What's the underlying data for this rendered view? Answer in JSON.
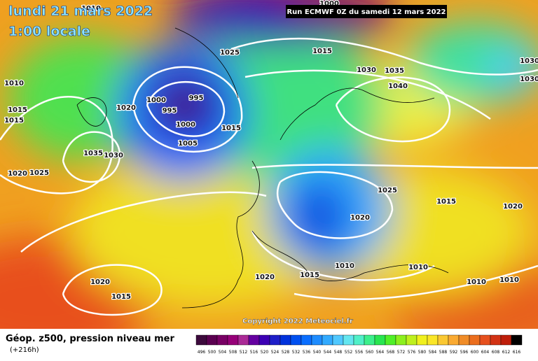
{
  "header": {
    "date": "lundi 21 mars 2022",
    "time": "1:00 locale",
    "run": "Run ECMWF 0Z du samedi 12 mars 2022"
  },
  "map": {
    "copyright": "Copyright 2022 Meteociel.fr",
    "isobar_labels": [
      "1010",
      "1000",
      "1025",
      "1015",
      "1030",
      "1035",
      "1030",
      "1030",
      "1040",
      "1020",
      "1000",
      "995",
      "995",
      "1000",
      "1015",
      "1005",
      "1010",
      "1015",
      "1015",
      "1035",
      "1030",
      "1020",
      "1025",
      "1025",
      "1015",
      "1020",
      "1020",
      "1010",
      "1010",
      "1020",
      "1015",
      "1020",
      "1010",
      "1010",
      "1015"
    ]
  },
  "footer": {
    "label": "Géop. z500, pression niveau mer",
    "lead": "(+216h)",
    "scale": {
      "values": [
        496,
        500,
        504,
        508,
        512,
        516,
        520,
        524,
        528,
        532,
        536,
        540,
        544,
        548,
        552,
        556,
        560,
        564,
        568,
        572,
        576,
        580,
        584,
        588,
        592,
        596,
        600,
        604,
        608,
        612,
        616
      ],
      "colors": [
        "#3c0a3c",
        "#5a0050",
        "#780064",
        "#960078",
        "#aa2a96",
        "#6400a0",
        "#3c00b4",
        "#1e1ec8",
        "#0032dc",
        "#0050f0",
        "#0a6eff",
        "#1e8cff",
        "#32aaff",
        "#50c8ff",
        "#64e6f0",
        "#50f0c8",
        "#3cf08c",
        "#28e650",
        "#50f028",
        "#8cf01e",
        "#bef01e",
        "#f0f01e",
        "#fae628",
        "#fac832",
        "#faaa32",
        "#f08c28",
        "#eb6e1e",
        "#e6501e",
        "#d23214",
        "#be1e0a",
        "#000000"
      ]
    }
  }
}
